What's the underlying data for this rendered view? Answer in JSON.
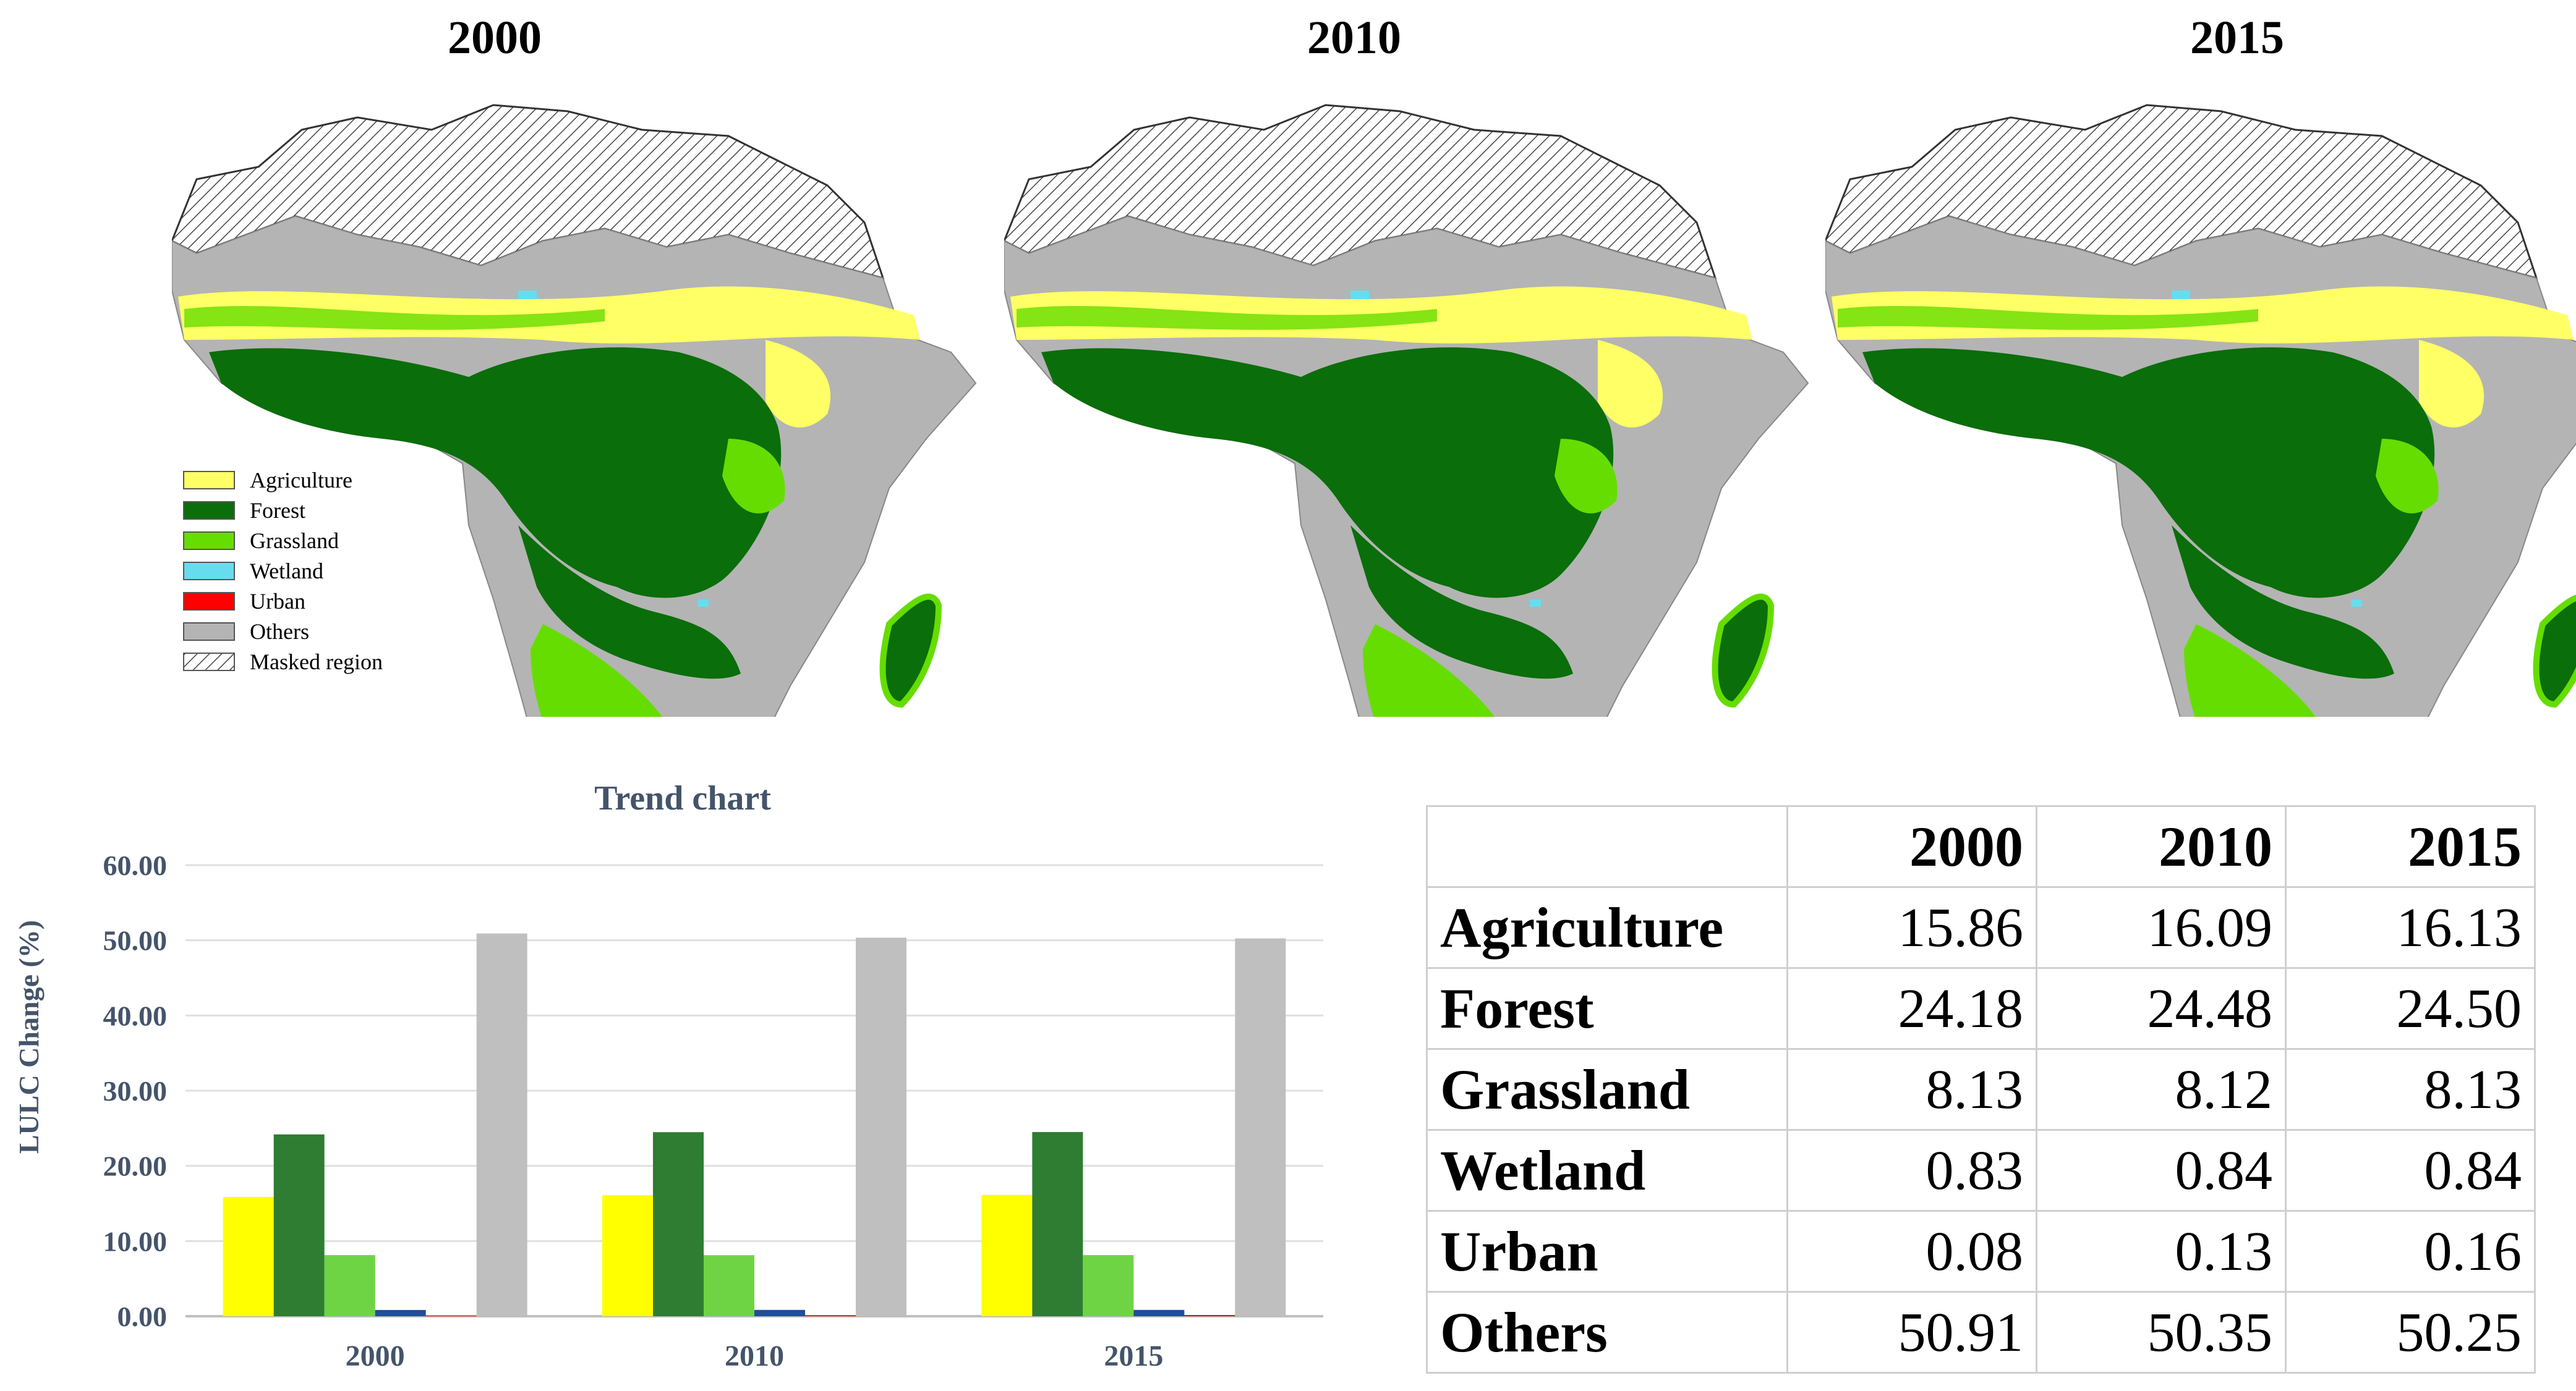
{
  "maps": [
    {
      "year": "2000"
    },
    {
      "year": "2010"
    },
    {
      "year": "2015"
    }
  ],
  "legend": [
    {
      "label": "Agriculture",
      "color": "#ffff66"
    },
    {
      "label": "Forest",
      "color": "#0a6e0a"
    },
    {
      "label": "Grassland",
      "color": "#66dd00"
    },
    {
      "label": "Wetland",
      "color": "#66ddee"
    },
    {
      "label": "Urban",
      "color": "#ff0000"
    },
    {
      "label": "Others",
      "color": "#b4b4b4"
    },
    {
      "label": "Masked region",
      "color": "hatch"
    }
  ],
  "chart_data": {
    "type": "bar",
    "title": "Trend chart",
    "ylabel": "LULC Change (%)",
    "xlabel": "",
    "categories": [
      "2000",
      "2010",
      "2015"
    ],
    "ylim": [
      0,
      60
    ],
    "yticks": [
      "0.00",
      "10.00",
      "20.00",
      "30.00",
      "40.00",
      "50.00",
      "60.00"
    ],
    "grid": true,
    "series": [
      {
        "name": "Agriculture",
        "color": "#ffff00",
        "values": [
          15.86,
          16.09,
          16.13
        ]
      },
      {
        "name": "Forest",
        "color": "#2e7d32",
        "values": [
          24.18,
          24.48,
          24.5
        ]
      },
      {
        "name": "Grassland",
        "color": "#6fd444",
        "values": [
          8.13,
          8.12,
          8.13
        ]
      },
      {
        "name": "Wetland",
        "color": "#1f4e9a",
        "values": [
          0.83,
          0.84,
          0.84
        ]
      },
      {
        "name": "Urban",
        "color": "#ff0000",
        "values": [
          0.08,
          0.13,
          0.16
        ]
      },
      {
        "name": "Others",
        "color": "#bfbfbf",
        "values": [
          50.91,
          50.35,
          50.25
        ]
      }
    ]
  },
  "table": {
    "headers": [
      "",
      "2000",
      "2010",
      "2015"
    ],
    "rows": [
      {
        "label": "Agriculture",
        "values": [
          "15.86",
          "16.09",
          "16.13"
        ]
      },
      {
        "label": "Forest",
        "values": [
          "24.18",
          "24.48",
          "24.50"
        ]
      },
      {
        "label": "Grassland",
        "values": [
          "8.13",
          "8.12",
          "8.13"
        ]
      },
      {
        "label": "Wetland",
        "values": [
          "0.83",
          "0.84",
          "0.84"
        ]
      },
      {
        "label": "Urban",
        "values": [
          "0.08",
          "0.13",
          "0.16"
        ]
      },
      {
        "label": "Others",
        "values": [
          "50.91",
          "50.35",
          "50.25"
        ]
      }
    ]
  }
}
